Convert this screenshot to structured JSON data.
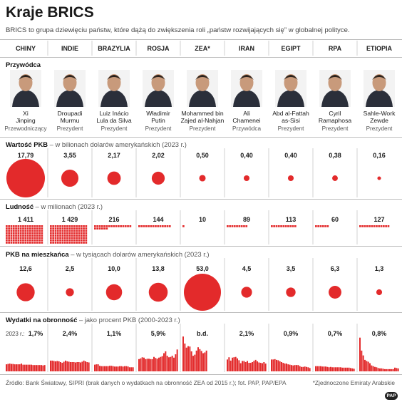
{
  "title": "Kraje BRICS",
  "subtitle": "BRICS to grupa dziewięciu państw, które dążą do zwiększenia roli „państw rozwijających się” w globalnej polityce.",
  "sections": {
    "leader": "Przywódca",
    "gdp": {
      "label": "Wartość PKB",
      "note": " – w bilionach dolarów amerykańskich (2023 r.)"
    },
    "population": {
      "label": "Ludność",
      "note": " – w milionach (2023 r.)"
    },
    "gdp_per_capita": {
      "label": "PKB na mieszkańca",
      "note": " – w tysiącach dolarów amerykańskich (2023 r.)"
    },
    "defense": {
      "label": "Wydatki na obronność",
      "note": " – jako procent PKB (2000-2023 r.)"
    }
  },
  "countries": [
    "CHINY",
    "INDIE",
    "BRAZYLIA",
    "ROSJA",
    "ZEA*",
    "IRAN",
    "EGIPT",
    "RPA",
    "ETIOPIA"
  ],
  "leaders": [
    {
      "name": [
        "Xi",
        "Jinping"
      ],
      "role": "Przewodniczący"
    },
    {
      "name": [
        "Droupadi",
        "Murmu"
      ],
      "role": "Prezydent"
    },
    {
      "name": [
        "Luiz Inácio",
        "Lula da Silva"
      ],
      "role": "Prezydent"
    },
    {
      "name": [
        "Władimir",
        "Putin"
      ],
      "role": "Prezydent"
    },
    {
      "name": [
        "Mohammed bin",
        "Zajed al-Nahjan"
      ],
      "role": "Prezydent"
    },
    {
      "name": [
        "Ali",
        "Chamenei"
      ],
      "role": "Przywódca"
    },
    {
      "name": [
        "Abd al-Fattah",
        "as-Sisi"
      ],
      "role": "Prezydent"
    },
    {
      "name": [
        "Cyril",
        "Ramaphosa"
      ],
      "role": "Prezydent"
    },
    {
      "name": [
        "Sahle-Work",
        "Zewde"
      ],
      "role": "Prezydent"
    }
  ],
  "defense_year_label": "2023 r.:",
  "source": "Źródło: Bank Światowy, SIPRI (brak danych o wydatkach na obronność ZEA od 2015 r.); fot. PAP, PAP/EPA",
  "footnote": "*Zjednoczone Emiraty Arabskie",
  "logo_text": "PAP",
  "colors": {
    "accent": "#e32a2b",
    "bar": "#e32a2b",
    "rule": "#bdbdbd",
    "text": "#1a1a1a"
  },
  "chart_data": [
    {
      "type": "bubble",
      "metric": "Wartość PKB",
      "unit": "bln USD",
      "categories": [
        "CHINY",
        "INDIE",
        "BRAZYLIA",
        "ROSJA",
        "ZEA*",
        "IRAN",
        "EGIPT",
        "RPA",
        "ETIOPIA"
      ],
      "values": [
        17.79,
        3.55,
        2.17,
        2.02,
        0.5,
        0.4,
        0.4,
        0.38,
        0.16
      ],
      "labels": [
        "17,79",
        "3,55",
        "2,17",
        "2,02",
        "0,50",
        "0,40",
        "0,40",
        "0,38",
        "0,16"
      ]
    },
    {
      "type": "pictogram",
      "metric": "Ludność",
      "unit": "mln",
      "categories": [
        "CHINY",
        "INDIE",
        "BRAZYLIA",
        "ROSJA",
        "ZEA*",
        "IRAN",
        "EGIPT",
        "RPA",
        "ETIOPIA"
      ],
      "values": [
        1411,
        1429,
        216,
        144,
        10,
        89,
        113,
        60,
        127
      ],
      "labels": [
        "1 411",
        "1 429",
        "216",
        "144",
        "10",
        "89",
        "113",
        "60",
        "127"
      ]
    },
    {
      "type": "bubble",
      "metric": "PKB na mieszkańca",
      "unit": "tys. USD",
      "categories": [
        "CHINY",
        "INDIE",
        "BRAZYLIA",
        "ROSJA",
        "ZEA*",
        "IRAN",
        "EGIPT",
        "RPA",
        "ETIOPIA"
      ],
      "values": [
        12.6,
        2.5,
        10.0,
        13.8,
        53.0,
        4.5,
        3.5,
        6.3,
        1.3
      ],
      "labels": [
        "12,6",
        "2,5",
        "10,0",
        "13,8",
        "53,0",
        "4,5",
        "3,5",
        "6,3",
        "1,3"
      ]
    },
    {
      "type": "bar",
      "metric": "Wydatki na obronność",
      "unit": "% PKB",
      "x": [
        2000,
        2001,
        2002,
        2003,
        2004,
        2005,
        2006,
        2007,
        2008,
        2009,
        2010,
        2011,
        2012,
        2013,
        2014,
        2015,
        2016,
        2017,
        2018,
        2019,
        2020,
        2021,
        2022,
        2023
      ],
      "labels_2023": [
        "1,7%",
        "2,4%",
        "1,1%",
        "5,9%",
        "b.d.",
        "2,1%",
        "0,9%",
        "0,7%",
        "0,8%"
      ],
      "series": [
        {
          "name": "CHINY",
          "values": [
            1.9,
            2.0,
            2.1,
            2.0,
            2.0,
            1.9,
            1.9,
            1.9,
            1.9,
            2.1,
            1.8,
            1.8,
            1.8,
            1.8,
            1.8,
            1.8,
            1.7,
            1.7,
            1.7,
            1.7,
            1.7,
            1.7,
            1.6,
            1.7
          ]
        },
        {
          "name": "INDIE",
          "values": [
            2.9,
            2.9,
            2.8,
            2.7,
            2.8,
            2.7,
            2.5,
            2.3,
            2.6,
            2.9,
            2.7,
            2.6,
            2.5,
            2.5,
            2.5,
            2.4,
            2.5,
            2.5,
            2.4,
            2.6,
            2.9,
            2.7,
            2.5,
            2.4
          ]
        },
        {
          "name": "BRAZYLIA",
          "values": [
            1.8,
            1.9,
            1.9,
            1.5,
            1.4,
            1.4,
            1.4,
            1.4,
            1.4,
            1.5,
            1.5,
            1.4,
            1.3,
            1.3,
            1.3,
            1.4,
            1.4,
            1.3,
            1.4,
            1.4,
            1.3,
            1.1,
            1.1,
            1.1
          ]
        },
        {
          "name": "ROSJA",
          "values": [
            3.3,
            3.5,
            3.8,
            3.7,
            3.3,
            3.4,
            3.4,
            3.3,
            3.3,
            3.9,
            3.6,
            3.4,
            3.7,
            3.9,
            4.1,
            4.9,
            5.4,
            4.2,
            3.8,
            3.9,
            4.2,
            3.7,
            4.6,
            5.9
          ]
        },
        {
          "name": "ZEA*",
          "values": [
            9.4,
            7.5,
            6.4,
            6.8,
            6.7,
            5.4,
            4.2,
            4.5,
            5.6,
            6.5,
            6.0,
            5.5,
            4.9,
            5.1,
            5.6,
            null,
            null,
            null,
            null,
            null,
            null,
            null,
            null,
            null
          ]
        },
        {
          "name": "IRAN",
          "values": [
            3.2,
            3.8,
            2.9,
            3.7,
            3.8,
            3.9,
            3.5,
            3.0,
            2.2,
            2.8,
            2.8,
            2.5,
            2.8,
            2.3,
            2.3,
            2.5,
            2.8,
            3.1,
            2.7,
            2.4,
            2.3,
            2.2,
            2.5,
            2.1
          ]
        },
        {
          "name": "EGIPT",
          "values": [
            3.2,
            3.2,
            3.3,
            3.1,
            3.0,
            2.7,
            2.5,
            2.3,
            2.1,
            2.1,
            1.9,
            1.8,
            1.7,
            1.6,
            1.7,
            1.7,
            1.7,
            1.4,
            1.2,
            1.2,
            1.3,
            1.2,
            1.1,
            0.9
          ]
        },
        {
          "name": "RPA",
          "values": [
            1.4,
            1.4,
            1.4,
            1.4,
            1.3,
            1.3,
            1.3,
            1.2,
            1.1,
            1.2,
            1.1,
            1.1,
            1.1,
            1.1,
            1.1,
            1.1,
            1.0,
            1.0,
            1.0,
            1.0,
            1.0,
            0.9,
            0.8,
            0.7
          ]
        },
        {
          "name": "ETIOPIA",
          "values": [
            9.1,
            5.6,
            4.3,
            3.1,
            2.8,
            2.6,
            2.2,
            1.6,
            1.4,
            1.2,
            1.1,
            0.9,
            0.8,
            0.8,
            0.7,
            0.6,
            0.6,
            0.6,
            0.6,
            0.6,
            0.6,
            1.0,
            0.9,
            0.8
          ]
        }
      ]
    }
  ]
}
